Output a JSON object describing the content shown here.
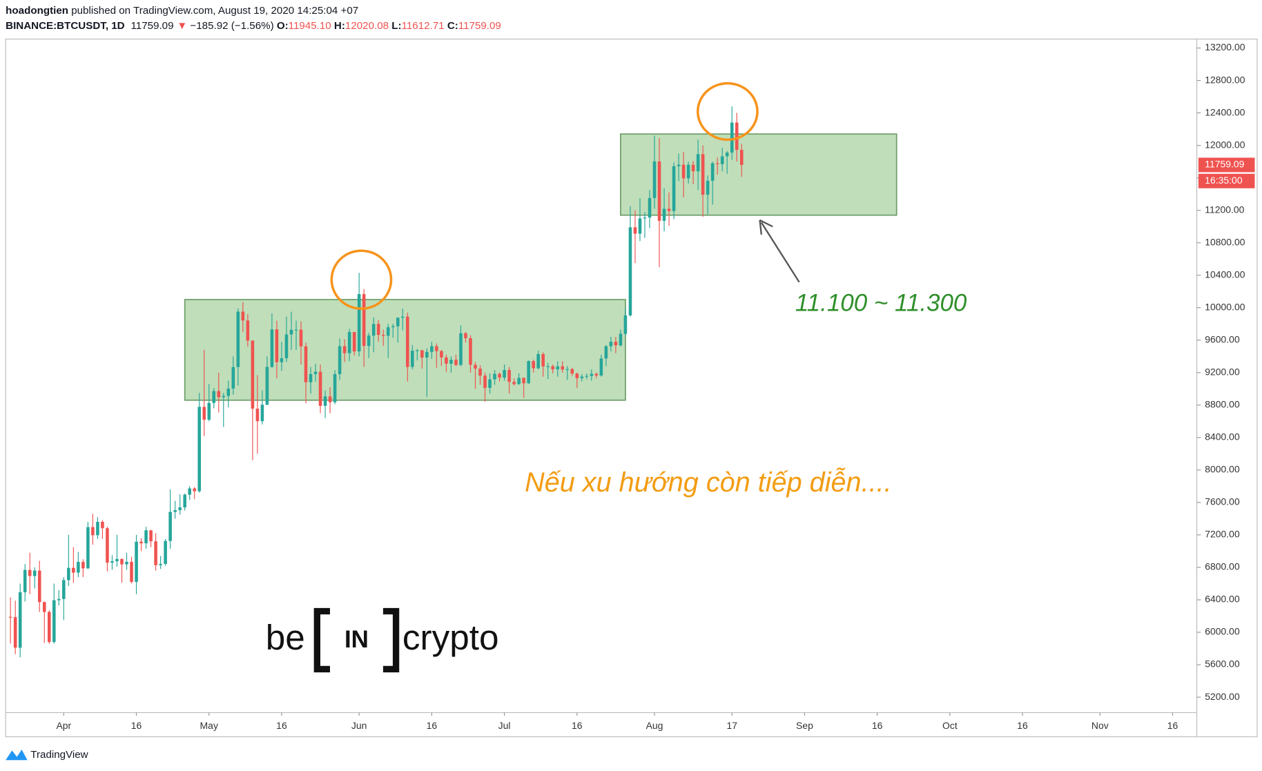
{
  "header": {
    "author": "hoadongtien",
    "published": "published on TradingView.com, August 19, 2020 14:25:04 +07",
    "symbol": "BINANCE:BTCUSDT, 1D",
    "last": "11759.09",
    "arrow": "▼",
    "change": "−185.92 (−1.56%)",
    "o_label": "O:",
    "o": "11945.10",
    "h_label": "H:",
    "h": "12020.08",
    "l_label": "L:",
    "l": "11612.71",
    "c_label": "C:",
    "c": "11759.09"
  },
  "chart_data": {
    "type": "candlestick",
    "x": [
      "2020-03-21",
      "2020-03-22",
      "2020-03-23",
      "2020-03-24",
      "2020-03-25",
      "2020-03-26",
      "2020-03-27",
      "2020-03-28",
      "2020-03-29",
      "2020-03-30",
      "2020-03-31",
      "2020-04-01",
      "2020-04-02",
      "2020-04-03",
      "2020-04-04",
      "2020-04-05",
      "2020-04-06",
      "2020-04-07",
      "2020-04-08",
      "2020-04-09",
      "2020-04-10",
      "2020-04-11",
      "2020-04-12",
      "2020-04-13",
      "2020-04-14",
      "2020-04-15",
      "2020-04-16",
      "2020-04-17",
      "2020-04-18",
      "2020-04-19",
      "2020-04-20",
      "2020-04-21",
      "2020-04-22",
      "2020-04-23",
      "2020-04-24",
      "2020-04-25",
      "2020-04-26",
      "2020-04-27",
      "2020-04-28",
      "2020-04-29",
      "2020-04-30",
      "2020-05-01",
      "2020-05-02",
      "2020-05-03",
      "2020-05-04",
      "2020-05-05",
      "2020-05-06",
      "2020-05-07",
      "2020-05-08",
      "2020-05-09",
      "2020-05-10",
      "2020-05-11",
      "2020-05-12",
      "2020-05-13",
      "2020-05-14",
      "2020-05-15",
      "2020-05-16",
      "2020-05-17",
      "2020-05-18",
      "2020-05-19",
      "2020-05-20",
      "2020-05-21",
      "2020-05-22",
      "2020-05-23",
      "2020-05-24",
      "2020-05-25",
      "2020-05-26",
      "2020-05-27",
      "2020-05-28",
      "2020-05-29",
      "2020-05-30",
      "2020-05-31",
      "2020-06-01",
      "2020-06-02",
      "2020-06-03",
      "2020-06-04",
      "2020-06-05",
      "2020-06-06",
      "2020-06-07",
      "2020-06-08",
      "2020-06-09",
      "2020-06-10",
      "2020-06-11",
      "2020-06-12",
      "2020-06-13",
      "2020-06-14",
      "2020-06-15",
      "2020-06-16",
      "2020-06-17",
      "2020-06-18",
      "2020-06-19",
      "2020-06-20",
      "2020-06-21",
      "2020-06-22",
      "2020-06-23",
      "2020-06-24",
      "2020-06-25",
      "2020-06-26",
      "2020-06-27",
      "2020-06-28",
      "2020-06-29",
      "2020-06-30",
      "2020-07-01",
      "2020-07-02",
      "2020-07-03",
      "2020-07-04",
      "2020-07-05",
      "2020-07-06",
      "2020-07-07",
      "2020-07-08",
      "2020-07-09",
      "2020-07-10",
      "2020-07-11",
      "2020-07-12",
      "2020-07-13",
      "2020-07-14",
      "2020-07-15",
      "2020-07-16",
      "2020-07-17",
      "2020-07-18",
      "2020-07-19",
      "2020-07-20",
      "2020-07-21",
      "2020-07-22",
      "2020-07-23",
      "2020-07-24",
      "2020-07-25",
      "2020-07-26",
      "2020-07-27",
      "2020-07-28",
      "2020-07-29",
      "2020-07-30",
      "2020-07-31",
      "2020-08-01",
      "2020-08-02",
      "2020-08-03",
      "2020-08-04",
      "2020-08-05",
      "2020-08-06",
      "2020-08-07",
      "2020-08-08",
      "2020-08-09",
      "2020-08-10",
      "2020-08-11",
      "2020-08-12",
      "2020-08-13",
      "2020-08-14",
      "2020-08-15",
      "2020-08-16",
      "2020-08-17",
      "2020-08-18",
      "2020-08-19"
    ],
    "open": [
      6190,
      6186,
      5810,
      6493,
      6768,
      6693,
      6760,
      6372,
      6250,
      5880,
      6395,
      6410,
      6643,
      6794,
      6735,
      6867,
      6788,
      7296,
      7196,
      7361,
      7283,
      6858,
      6876,
      6903,
      6837,
      6868,
      6621,
      7116,
      7096,
      7257,
      7121,
      6827,
      6842,
      7125,
      7483,
      7505,
      7539,
      7696,
      7773,
      7738,
      8778,
      8620,
      8826,
      8972,
      8897,
      8912,
      9003,
      9268,
      9951,
      9842,
      9594,
      8756,
      8601,
      8804,
      9270,
      9733,
      9328,
      9377,
      9670,
      9727,
      9729,
      9523,
      9081,
      9182,
      9210,
      8790,
      8906,
      8835,
      9181,
      9525,
      9439,
      9700,
      9461,
      10167,
      9529,
      9656,
      9800,
      9665,
      9653,
      9759,
      9771,
      9877,
      9890,
      9270,
      9470,
      9475,
      9386,
      9455,
      9525,
      9465,
      9386,
      9310,
      9358,
      9294,
      9685,
      9624,
      9296,
      9249,
      9162,
      9012,
      9117,
      9185,
      9138,
      9232,
      9086,
      9058,
      9135,
      9069,
      9342,
      9253,
      9428,
      9277,
      9278,
      9240,
      9277,
      9238,
      9243,
      9188,
      9132,
      9151,
      9159,
      9185,
      9164,
      9374,
      9525,
      9581,
      9536,
      9677,
      9905,
      10990,
      10912,
      11100,
      11111,
      11351,
      11802,
      11071,
      11219,
      11191,
      11744,
      11762,
      11594,
      11761,
      11681,
      11892,
      11392,
      11564,
      11780,
      11769,
      11865,
      11911,
      12281,
      11945.1
    ],
    "high": [
      6430,
      6390,
      6600,
      6840,
      6980,
      6800,
      6880,
      6380,
      6270,
      6600,
      6520,
      6680,
      7200,
      7050,
      6990,
      6900,
      7360,
      7460,
      7420,
      7380,
      7300,
      6950,
      7200,
      6910,
      6980,
      6930,
      7200,
      7160,
      7300,
      7260,
      7220,
      6940,
      7150,
      7760,
      7620,
      7700,
      7710,
      7800,
      7790,
      8950,
      9480,
      9060,
      9010,
      9200,
      8950,
      9100,
      9400,
      9990,
      10070,
      9920,
      9600,
      9170,
      8980,
      9400,
      9930,
      9840,
      9580,
      9890,
      9950,
      9840,
      9830,
      9570,
      9270,
      9310,
      9300,
      8980,
      9020,
      9230,
      9620,
      9610,
      9740,
      9700,
      10430,
      10230,
      9690,
      9880,
      9850,
      9730,
      9800,
      9800,
      9880,
      9990,
      9940,
      9540,
      9490,
      9480,
      9500,
      9580,
      9560,
      9480,
      9420,
      9400,
      9420,
      9780,
      9700,
      9660,
      9330,
      9290,
      9200,
      9190,
      9230,
      9200,
      9300,
      9270,
      9130,
      9190,
      9140,
      9350,
      9360,
      9470,
      9450,
      9320,
      9300,
      9340,
      9340,
      9280,
      9260,
      9200,
      9180,
      9190,
      9240,
      9200,
      9420,
      9540,
      9640,
      9640,
      9730,
      10000,
      11250,
      11200,
      11350,
      11180,
      11450,
      12120,
      12090,
      11470,
      11420,
      11790,
      11900,
      11920,
      11800,
      11810,
      12070,
      12000,
      11630,
      11800,
      11850,
      11970,
      11930,
      12480,
      12400,
      12020.08
    ],
    "low": [
      5860,
      5730,
      5690,
      6380,
      6470,
      6540,
      6250,
      5870,
      5860,
      5860,
      6330,
      6150,
      6570,
      6610,
      6680,
      6680,
      6780,
      7080,
      7150,
      7150,
      6750,
      6770,
      6810,
      6610,
      6770,
      6600,
      6470,
      7000,
      7030,
      7050,
      6760,
      6780,
      6820,
      7030,
      7400,
      7450,
      7500,
      7630,
      7640,
      7720,
      8420,
      8600,
      8760,
      8710,
      8530,
      8770,
      8930,
      9040,
      9700,
      9520,
      8120,
      8200,
      8560,
      8800,
      9260,
      9130,
      9220,
      9330,
      9480,
      9480,
      9300,
      8820,
      8940,
      9090,
      8700,
      8640,
      8700,
      8810,
      9110,
      9330,
      9340,
      9410,
      9400,
      9270,
      9380,
      9450,
      9580,
      9530,
      9380,
      9630,
      9570,
      9720,
      9090,
      9240,
      9350,
      9250,
      8900,
      9370,
      9260,
      9280,
      9210,
      9200,
      9280,
      9280,
      9570,
      9200,
      9000,
      9050,
      8840,
      8940,
      9050,
      9090,
      9100,
      8940,
      9040,
      9050,
      8890,
      9060,
      9200,
      9240,
      9150,
      9120,
      9190,
      9150,
      9200,
      9110,
      9160,
      9010,
      9090,
      9120,
      9100,
      9130,
      9150,
      9280,
      9460,
      9440,
      9520,
      9660,
      9890,
      10550,
      10820,
      10860,
      10980,
      11220,
      10500,
      10940,
      11010,
      11090,
      11560,
      11360,
      11530,
      11520,
      11450,
      11120,
      11150,
      11270,
      11640,
      11680,
      11650,
      11820,
      11800,
      11612.71
    ],
    "close": [
      6186,
      5810,
      6493,
      6768,
      6693,
      6760,
      6372,
      6250,
      5880,
      6395,
      6410,
      6643,
      6794,
      6735,
      6867,
      6788,
      7296,
      7196,
      7361,
      7283,
      6858,
      6876,
      6903,
      6837,
      6868,
      6621,
      7116,
      7096,
      7257,
      7121,
      6827,
      6842,
      7125,
      7483,
      7505,
      7539,
      7696,
      7773,
      7738,
      8778,
      8620,
      8826,
      8972,
      8897,
      8912,
      9003,
      9268,
      9951,
      9842,
      9594,
      8756,
      8601,
      8804,
      9270,
      9733,
      9328,
      9377,
      9670,
      9727,
      9729,
      9523,
      9081,
      9182,
      9210,
      8790,
      8906,
      8835,
      9181,
      9525,
      9439,
      9700,
      9461,
      10167,
      9529,
      9656,
      9800,
      9665,
      9653,
      9759,
      9771,
      9877,
      9890,
      9270,
      9470,
      9475,
      9386,
      9455,
      9525,
      9465,
      9386,
      9310,
      9358,
      9294,
      9685,
      9624,
      9296,
      9249,
      9162,
      9012,
      9117,
      9185,
      9138,
      9232,
      9086,
      9058,
      9135,
      9069,
      9342,
      9253,
      9428,
      9277,
      9278,
      9240,
      9277,
      9238,
      9243,
      9188,
      9132,
      9151,
      9159,
      9185,
      9164,
      9374,
      9525,
      9581,
      9536,
      9677,
      9905,
      10990,
      10912,
      11100,
      11111,
      11351,
      11802,
      11071,
      11219,
      11191,
      11744,
      11762,
      11594,
      11761,
      11681,
      11892,
      11392,
      11564,
      11780,
      11769,
      11865,
      11911,
      12281,
      11945.1,
      11759.09
    ],
    "up_color": "#26a69a",
    "down_color": "#ef5350",
    "xlim": [
      "2020-03-20",
      "2020-11-21"
    ],
    "xticks": [
      {
        "value": "2020-04-01",
        "label": "Apr"
      },
      {
        "value": "2020-04-16",
        "label": "16"
      },
      {
        "value": "2020-05-01",
        "label": "May"
      },
      {
        "value": "2020-05-16",
        "label": "16"
      },
      {
        "value": "2020-06-01",
        "label": "Jun"
      },
      {
        "value": "2020-06-16",
        "label": "16"
      },
      {
        "value": "2020-07-01",
        "label": "Jul"
      },
      {
        "value": "2020-07-16",
        "label": "16"
      },
      {
        "value": "2020-08-01",
        "label": "Aug"
      },
      {
        "value": "2020-08-17",
        "label": "17"
      },
      {
        "value": "2020-09-01",
        "label": "Sep"
      },
      {
        "value": "2020-09-16",
        "label": "16"
      },
      {
        "value": "2020-10-01",
        "label": "Oct"
      },
      {
        "value": "2020-10-16",
        "label": "16"
      },
      {
        "value": "2020-11-01",
        "label": "Nov"
      },
      {
        "value": "2020-11-16",
        "label": "16"
      }
    ],
    "ylim": [
      5010,
      13310
    ],
    "yticks": [
      {
        "value": 5200,
        "label": "5200.00"
      },
      {
        "value": 5600,
        "label": "5600.00"
      },
      {
        "value": 6000,
        "label": "6000.00"
      },
      {
        "value": 6400,
        "label": "6400.00"
      },
      {
        "value": 6800,
        "label": "6800.00"
      },
      {
        "value": 7200,
        "label": "7200.00"
      },
      {
        "value": 7600,
        "label": "7600.00"
      },
      {
        "value": 8000,
        "label": "8000.00"
      },
      {
        "value": 8400,
        "label": "8400.00"
      },
      {
        "value": 8800,
        "label": "8800.00"
      },
      {
        "value": 9200,
        "label": "9200.00"
      },
      {
        "value": 9600,
        "label": "9600.00"
      },
      {
        "value": 10000,
        "label": "10000.00"
      },
      {
        "value": 10400,
        "label": "10400.00"
      },
      {
        "value": 10800,
        "label": "10800.00"
      },
      {
        "value": 11200,
        "label": "11200.00"
      },
      {
        "value": 11600,
        "label": "11600.00"
      },
      {
        "value": 12000,
        "label": "12000.00"
      },
      {
        "value": 12400,
        "label": "12400.00"
      },
      {
        "value": 12800,
        "label": "12800.00"
      },
      {
        "value": 13200,
        "label": "13200.00"
      }
    ],
    "grid": false,
    "price_tag": {
      "value": 11759.09,
      "label": "11759.09"
    },
    "countdown": "16:35:00",
    "zones": [
      {
        "x": [
          "2020-04-26",
          "2020-07-26"
        ],
        "y": [
          8860,
          10100
        ],
        "color": "#a9d3a1"
      },
      {
        "x": [
          "2020-07-25",
          "2020-09-20"
        ],
        "y": [
          11140,
          12140
        ],
        "color": "#a9d3a1"
      }
    ],
    "annotations": [
      "11.100 ~ 11.300",
      "Nếu xu hướng còn tiếp diễn...."
    ]
  },
  "logo": {
    "left": "be",
    "mid": "IN",
    "right": "crypto"
  },
  "footer": "TradingView"
}
